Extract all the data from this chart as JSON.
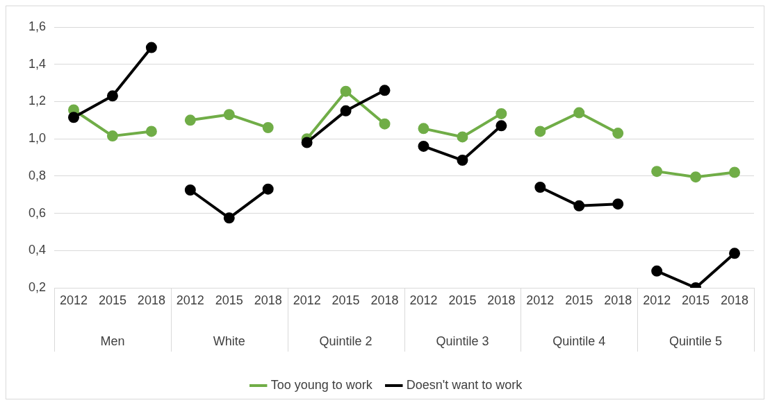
{
  "chart_data": {
    "type": "line",
    "categories": [
      "2012",
      "2015",
      "2018",
      "2012",
      "2015",
      "2018",
      "2012",
      "2015",
      "2018",
      "2012",
      "2015",
      "2018",
      "2012",
      "2015",
      "2018",
      "2012",
      "2015",
      "2018"
    ],
    "annotations": [
      "Men",
      "White",
      "Quintile 2",
      "Quintile 3",
      "Quintile 4",
      "Quintile 5"
    ],
    "series": [
      {
        "name": "Too young to work",
        "color": "#70ad47",
        "values": [
          1.155,
          1.015,
          1.04,
          1.1,
          1.13,
          1.06,
          1.0,
          1.255,
          1.08,
          1.055,
          1.01,
          1.135,
          1.04,
          1.14,
          1.03,
          0.825,
          0.795,
          0.82
        ]
      },
      {
        "name": "Doesn't want to work",
        "color": "#000000",
        "values": [
          1.115,
          1.23,
          1.49,
          0.725,
          0.575,
          0.73,
          0.98,
          1.15,
          1.26,
          0.96,
          0.885,
          1.07,
          0.74,
          0.64,
          0.65,
          0.29,
          0.2,
          0.385
        ]
      }
    ],
    "ylim": [
      0.2,
      1.6
    ],
    "yticks": [
      {
        "value": 0.2,
        "label": "0,2"
      },
      {
        "value": 0.4,
        "label": "0,4"
      },
      {
        "value": 0.6,
        "label": "0,6"
      },
      {
        "value": 0.8,
        "label": "0,8"
      },
      {
        "value": 1.0,
        "label": "1,0"
      },
      {
        "value": 1.2,
        "label": "1,2"
      },
      {
        "value": 1.4,
        "label": "1,4"
      },
      {
        "value": 1.6,
        "label": "1,6"
      }
    ],
    "grid": "y",
    "legend": "bottom",
    "marker": "circle"
  }
}
